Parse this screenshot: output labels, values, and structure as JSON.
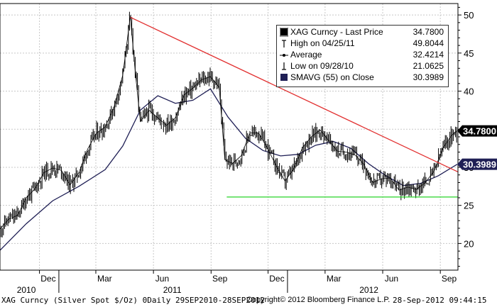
{
  "chart_data": {
    "type": "line",
    "title": "XAG Curncy",
    "y_axis": {
      "ticks": [
        20,
        25,
        30,
        35,
        40,
        45,
        50
      ],
      "ylim": [
        16.5,
        51.5
      ],
      "side": "right",
      "grid": true
    },
    "x_axis": {
      "month_ticks": [
        "Dec",
        "Mar",
        "Jun",
        "Sep",
        "Dec",
        "Mar",
        "Jun",
        "Sep"
      ],
      "year_labels": [
        "2010",
        "2011",
        "2012"
      ],
      "range": [
        "2010-09-29",
        "2012-09-28"
      ]
    },
    "series": [
      {
        "name": "XAG Curncy - Last Price",
        "color": "#000000",
        "style": "ohlc-bars",
        "x": [
          "2010-09-29",
          "2010-10-13",
          "2010-10-27",
          "2010-11-10",
          "2010-11-24",
          "2010-12-08",
          "2010-12-22",
          "2011-01-05",
          "2011-01-19",
          "2011-02-02",
          "2011-02-16",
          "2011-03-02",
          "2011-03-16",
          "2011-03-30",
          "2011-04-13",
          "2011-04-25",
          "2011-05-03",
          "2011-05-11",
          "2011-05-25",
          "2011-06-08",
          "2011-06-22",
          "2011-07-06",
          "2011-07-20",
          "2011-08-03",
          "2011-08-17",
          "2011-08-31",
          "2011-09-14",
          "2011-09-23",
          "2011-10-05",
          "2011-10-19",
          "2011-11-02",
          "2011-11-16",
          "2011-11-30",
          "2011-12-14",
          "2011-12-28",
          "2012-01-11",
          "2012-01-25",
          "2012-02-08",
          "2012-02-22",
          "2012-03-07",
          "2012-03-21",
          "2012-04-04",
          "2012-04-18",
          "2012-05-02",
          "2012-05-16",
          "2012-05-30",
          "2012-06-13",
          "2012-06-27",
          "2012-07-11",
          "2012-07-25",
          "2012-08-08",
          "2012-08-22",
          "2012-09-05",
          "2012-09-19",
          "2012-09-28"
        ],
        "values": [
          21.9,
          23.2,
          23.7,
          26.0,
          27.2,
          29.3,
          29.9,
          29.6,
          27.7,
          29.3,
          32.4,
          34.5,
          35.3,
          37.9,
          42.1,
          49.8,
          42.5,
          36.0,
          37.5,
          36.5,
          35.5,
          36.5,
          39.5,
          40.4,
          41.5,
          41.9,
          40.5,
          31.0,
          30.5,
          31.5,
          34.5,
          34.5,
          32.5,
          30.2,
          28.2,
          29.8,
          32.6,
          34.0,
          34.9,
          33.5,
          32.1,
          32.0,
          31.6,
          30.4,
          28.0,
          28.5,
          28.6,
          27.0,
          27.4,
          27.1,
          28.0,
          29.5,
          32.5,
          34.2,
          34.78
        ]
      },
      {
        "name": "SMAVG (55) on Close",
        "color": "#1f1f55",
        "x": [
          "2010-09-29",
          "2010-11-10",
          "2010-12-22",
          "2011-02-02",
          "2011-03-16",
          "2011-04-13",
          "2011-05-11",
          "2011-06-08",
          "2011-07-06",
          "2011-08-03",
          "2011-08-31",
          "2011-09-28",
          "2011-10-26",
          "2011-11-23",
          "2011-12-21",
          "2012-01-18",
          "2012-02-15",
          "2012-03-14",
          "2012-04-11",
          "2012-05-09",
          "2012-06-06",
          "2012-07-04",
          "2012-08-01",
          "2012-08-29",
          "2012-09-28"
        ],
        "values": [
          19.1,
          22.6,
          25.6,
          27.5,
          29.7,
          32.8,
          37.5,
          39.4,
          38.4,
          38.8,
          40.3,
          36.6,
          33.8,
          32.2,
          31.5,
          31.7,
          32.9,
          33.4,
          32.5,
          30.5,
          28.9,
          27.6,
          27.9,
          28.9,
          30.4
        ]
      }
    ],
    "annotations": [
      {
        "type": "trendline",
        "color": "#e23030",
        "from": [
          "2011-04-25",
          49.7
        ],
        "to": [
          "2012-09-28",
          29.4
        ]
      },
      {
        "type": "horizontal",
        "color": "#27d427",
        "y": 26.1,
        "from": "2011-09-26",
        "to": "2012-09-28"
      }
    ],
    "legend": {
      "placement": "top-right",
      "rows": [
        {
          "label": "XAG Curncy - Last Price",
          "value": "34.7800",
          "marker": "filled-square"
        },
        {
          "label": "High on 04/25/11",
          "value": "49.8044",
          "marker": "high"
        },
        {
          "label": "Average",
          "value": "32.4214",
          "marker": "average"
        },
        {
          "label": "Low on 09/28/10",
          "value": "21.0625",
          "marker": "low"
        },
        {
          "label": "SMAVG (55) on Close",
          "value": "30.3989",
          "marker": "navy-square"
        }
      ]
    },
    "last_value_tags": [
      {
        "value": "34.7800",
        "y": 34.78,
        "bg": "#000000",
        "fg": "#ffffff"
      },
      {
        "value": "30.3989",
        "y": 30.3989,
        "bg": "#1f1f55",
        "fg": "#ffffff"
      }
    ]
  },
  "footer": {
    "left": "XAG Curncy (Silver Spot  $/Oz) 0Daily 29SEP2010-28SEP2012",
    "middle": "Copyright© 2012 Bloomberg Finance L.P.",
    "right": "28-Sep-2012 09:44:15"
  }
}
